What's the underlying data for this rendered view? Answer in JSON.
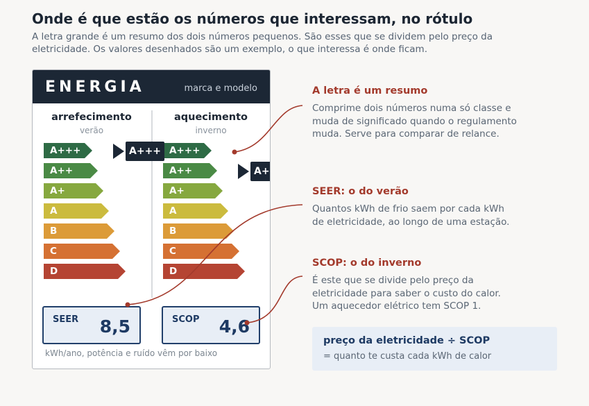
{
  "header": {
    "title": "Onde é que estão os números que interessam, no rótulo",
    "subtitle": "A letra grande é um resumo dos dois números pequenos. São esses que se dividem pelo preço da eletricidade. Os valores desenhados são um exemplo, o que interessa é onde ficam."
  },
  "label": {
    "brand": "ENERGIA",
    "model": "marca e modelo",
    "cooling": {
      "title": "arrefecimento",
      "sub": "verão",
      "current_class": "A+++"
    },
    "heating": {
      "title": "aquecimento",
      "sub": "inverno",
      "current_class": "A++"
    },
    "classes": [
      {
        "name": "A+++",
        "color": "#2e6b45"
      },
      {
        "name": "A++",
        "color": "#4a8a45"
      },
      {
        "name": "A+",
        "color": "#86a83f"
      },
      {
        "name": "A",
        "color": "#cbbb3e"
      },
      {
        "name": "B",
        "color": "#dc9b38"
      },
      {
        "name": "C",
        "color": "#d57133"
      },
      {
        "name": "D",
        "color": "#b54433"
      }
    ],
    "seer": {
      "name": "SEER",
      "value": "8,5"
    },
    "scop": {
      "name": "SCOP",
      "value": "4,6"
    },
    "footnote": "kWh/ano, potência e ruído vêm por baixo"
  },
  "annotations": [
    {
      "title": "A letra é um resumo",
      "lines": [
        "Comprime dois números numa só classe e",
        "muda de significado quando o regulamento",
        "muda. Serve para comparar de relance."
      ]
    },
    {
      "title": "SEER: o do verão",
      "lines": [
        "Quantos kWh de frio saem por cada kWh",
        "de eletricidade, ao longo de uma estação."
      ]
    },
    {
      "title": "SCOP: o do inverno",
      "lines": [
        "É este que se divide pelo preço da",
        "eletricidade para saber o custo do calor.",
        "Um aquecedor elétrico tem SCOP 1."
      ]
    }
  ],
  "formula": {
    "expression": "preço da eletricidade ÷ SCOP",
    "meaning": "= quanto te custa cada kWh de calor"
  },
  "colors": {
    "accent": "#a33a2c",
    "navy": "#1c2735",
    "metric_border": "#22406b"
  }
}
